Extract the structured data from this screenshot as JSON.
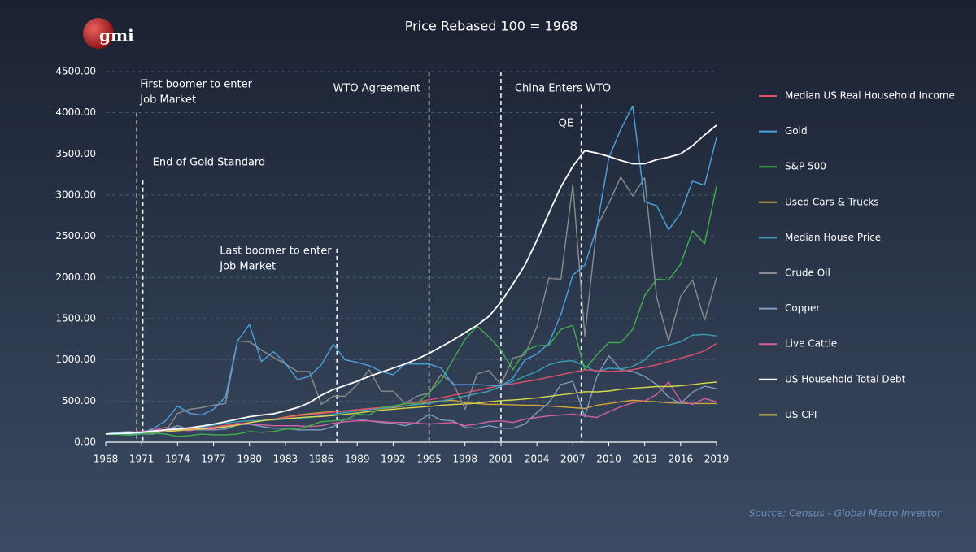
{
  "logo": "gmi",
  "source": "Source: Census - Global Macro Investor",
  "chart_data": {
    "type": "line",
    "title": "Price Rebased 100 = 1968",
    "x": [
      1968,
      1969,
      1970,
      1971,
      1972,
      1973,
      1974,
      1975,
      1976,
      1977,
      1978,
      1979,
      1980,
      1981,
      1982,
      1983,
      1984,
      1985,
      1986,
      1987,
      1988,
      1989,
      1990,
      1991,
      1992,
      1993,
      1994,
      1995,
      1996,
      1997,
      1998,
      1999,
      2000,
      2001,
      2002,
      2003,
      2004,
      2005,
      2006,
      2007,
      2008,
      2009,
      2010,
      2011,
      2012,
      2013,
      2014,
      2015,
      2016,
      2017,
      2018,
      2019
    ],
    "xlim": [
      1968,
      2019
    ],
    "xticks": [
      1968,
      1971,
      1974,
      1977,
      1980,
      1983,
      1986,
      1989,
      1992,
      1995,
      1998,
      2001,
      2004,
      2007,
      2010,
      2013,
      2016,
      2019
    ],
    "ylim": [
      0,
      4500
    ],
    "yticks": [
      {
        "value": 0,
        "label": "0.00"
      },
      {
        "value": 500,
        "label": "500.00"
      },
      {
        "value": 1000,
        "label": "1000.00"
      },
      {
        "value": 1500,
        "label": "1500.00"
      },
      {
        "value": 2000,
        "label": "2000.00"
      },
      {
        "value": 2500,
        "label": "2500.00"
      },
      {
        "value": 3000,
        "label": "3000.00"
      },
      {
        "value": 3500,
        "label": "3500.00"
      },
      {
        "value": 4000,
        "label": "4000.00"
      },
      {
        "value": 4500,
        "label": "4500.00"
      }
    ],
    "grid": true,
    "legend": "right",
    "series": [
      {
        "name": "Median US Real Household Income",
        "color": "#e0506a",
        "values": [
          100,
          105,
          108,
          115,
          130,
          140,
          150,
          160,
          170,
          185,
          205,
          220,
          240,
          260,
          280,
          300,
          320,
          335,
          350,
          365,
          380,
          395,
          410,
          420,
          440,
          465,
          490,
          515,
          540,
          570,
          600,
          630,
          660,
          690,
          710,
          735,
          760,
          790,
          820,
          850,
          880,
          870,
          860,
          865,
          880,
          910,
          940,
          980,
          1020,
          1060,
          1110,
          1200
        ]
      },
      {
        "name": "Gold",
        "color": "#4aa3e0",
        "values": [
          100,
          120,
          100,
          110,
          170,
          260,
          440,
          350,
          330,
          400,
          550,
          1230,
          1430,
          980,
          1100,
          960,
          760,
          800,
          940,
          1190,
          1000,
          970,
          930,
          860,
          820,
          950,
          950,
          950,
          900,
          700,
          700,
          700,
          690,
          680,
          780,
          1000,
          1070,
          1200,
          1550,
          2030,
          2150,
          2600,
          3450,
          3800,
          4080,
          2920,
          2870,
          2580,
          2780,
          3170,
          3120,
          3700
        ]
      },
      {
        "name": "S&P 500",
        "color": "#3fb04a",
        "values": [
          100,
          95,
          85,
          100,
          110,
          100,
          70,
          80,
          100,
          90,
          90,
          100,
          130,
          120,
          130,
          160,
          160,
          200,
          250,
          260,
          270,
          340,
          330,
          420,
          440,
          470,
          470,
          600,
          750,
          1000,
          1250,
          1410,
          1280,
          1120,
          880,
          1110,
          1170,
          1180,
          1370,
          1420,
          880,
          1060,
          1210,
          1210,
          1370,
          1780,
          1980,
          1970,
          2160,
          2570,
          2410,
          3110
        ]
      },
      {
        "name": "Used Cars & Trucks",
        "color": "#d4a536",
        "values": [
          100,
          103,
          106,
          110,
          120,
          130,
          140,
          150,
          160,
          180,
          200,
          220,
          240,
          260,
          280,
          305,
          330,
          345,
          360,
          370,
          380,
          390,
          400,
          410,
          420,
          440,
          460,
          490,
          500,
          510,
          480,
          470,
          460,
          460,
          455,
          450,
          450,
          440,
          430,
          420,
          410,
          450,
          470,
          490,
          510,
          500,
          490,
          480,
          475,
          470,
          470,
          470
        ]
      },
      {
        "name": "Median House Price",
        "color": "#3aa0b8",
        "values": [
          100,
          105,
          105,
          115,
          125,
          140,
          160,
          170,
          180,
          205,
          230,
          250,
          260,
          265,
          270,
          280,
          290,
          300,
          320,
          340,
          360,
          380,
          400,
          410,
          430,
          440,
          460,
          470,
          500,
          530,
          560,
          590,
          620,
          680,
          740,
          800,
          860,
          940,
          980,
          990,
          930,
          850,
          900,
          890,
          920,
          1000,
          1140,
          1180,
          1220,
          1300,
          1310,
          1290
        ]
      },
      {
        "name": "Crude Oil",
        "color": "#8c8c8c",
        "values": [
          100,
          110,
          100,
          110,
          110,
          130,
          350,
          400,
          420,
          450,
          470,
          1230,
          1220,
          1120,
          1030,
          950,
          860,
          860,
          460,
          560,
          560,
          700,
          880,
          620,
          620,
          470,
          560,
          600,
          820,
          720,
          400,
          830,
          870,
          700,
          1020,
          1060,
          1400,
          1990,
          1980,
          3130,
          1290,
          2610,
          2900,
          3220,
          2990,
          3210,
          1760,
          1230,
          1770,
          1970,
          1480,
          2000
        ]
      },
      {
        "name": "Copper",
        "color": "#7f9cc0",
        "values": [
          100,
          120,
          130,
          100,
          100,
          150,
          200,
          150,
          150,
          150,
          160,
          210,
          220,
          190,
          170,
          170,
          150,
          150,
          150,
          190,
          280,
          280,
          260,
          240,
          230,
          200,
          240,
          340,
          270,
          260,
          180,
          170,
          200,
          170,
          170,
          220,
          360,
          480,
          700,
          740,
          310,
          790,
          1050,
          880,
          860,
          800,
          700,
          550,
          470,
          610,
          680,
          650
        ]
      },
      {
        "name": "Live Cattle",
        "color": "#d660a0",
        "values": [
          100,
          110,
          120,
          130,
          150,
          180,
          150,
          140,
          160,
          160,
          200,
          230,
          220,
          210,
          200,
          200,
          200,
          190,
          200,
          230,
          250,
          260,
          260,
          250,
          240,
          240,
          230,
          220,
          230,
          240,
          200,
          220,
          250,
          260,
          240,
          280,
          300,
          320,
          330,
          340,
          320,
          300,
          370,
          430,
          480,
          500,
          580,
          730,
          500,
          460,
          530,
          490
        ]
      },
      {
        "name": "US Household Total Debt",
        "color": "#ffffff",
        "values": [
          100,
          105,
          110,
          120,
          135,
          150,
          160,
          175,
          195,
          220,
          250,
          280,
          310,
          330,
          345,
          380,
          420,
          480,
          570,
          640,
          690,
          740,
          800,
          850,
          900,
          950,
          1010,
          1080,
          1160,
          1240,
          1330,
          1420,
          1530,
          1700,
          1920,
          2150,
          2450,
          2780,
          3100,
          3350,
          3540,
          3510,
          3470,
          3420,
          3380,
          3380,
          3430,
          3460,
          3500,
          3600,
          3730,
          3850
        ]
      },
      {
        "name": "US CPI",
        "color": "#d8d84a",
        "values": [
          100,
          105,
          111,
          116,
          120,
          127,
          141,
          154,
          163,
          173,
          187,
          208,
          236,
          260,
          276,
          285,
          297,
          308,
          313,
          325,
          338,
          354,
          373,
          389,
          401,
          413,
          423,
          435,
          448,
          458,
          465,
          475,
          491,
          505,
          513,
          525,
          539,
          557,
          575,
          591,
          614,
          612,
          622,
          642,
          655,
          665,
          676,
          676,
          685,
          700,
          717,
          730
        ]
      }
    ],
    "annotations": [
      {
        "text": [
          "First boomer to enter",
          "Job Market"
        ],
        "x": 1970.6,
        "y": 4000
      },
      {
        "text": [
          "End of Gold Standard"
        ],
        "x": 1971.1,
        "y": 3180
      },
      {
        "text": [
          "Last boomer to enter",
          "Job Market"
        ],
        "x": 1987.3,
        "y": 2350
      },
      {
        "text": [
          "WTO Agreement"
        ],
        "x": 1995,
        "y": 4500
      },
      {
        "text": [
          "China Enters WTO"
        ],
        "x": 2001,
        "y": 4500
      },
      {
        "text": [
          "QE"
        ],
        "x": 2007.7,
        "y": 4100
      }
    ]
  }
}
